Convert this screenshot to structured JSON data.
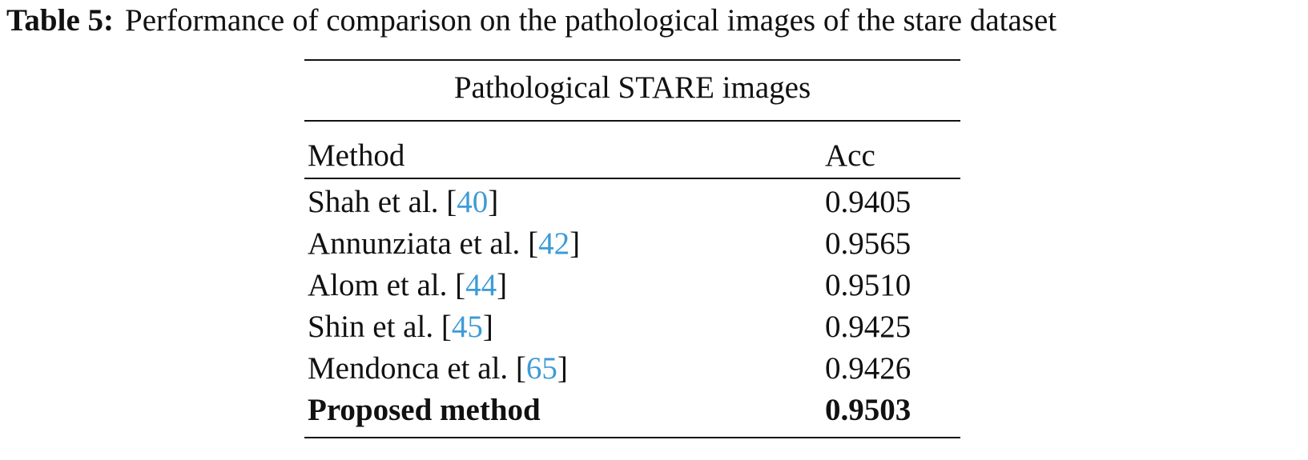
{
  "caption": {
    "label": "Table 5:",
    "text": "Performance of comparison on the pathological images of the stare dataset"
  },
  "table": {
    "group_header": "Pathological STARE images",
    "columns": [
      "Method",
      "Acc"
    ],
    "ref_brackets": [
      "[",
      "]"
    ],
    "rows": [
      {
        "method": "Shah et al.",
        "ref": "40",
        "acc": "0.9405"
      },
      {
        "method": "Annunziata et al.",
        "ref": "42",
        "acc": "0.9565"
      },
      {
        "method": "Alom et al.",
        "ref": "44",
        "acc": "0.9510"
      },
      {
        "method": "Shin et al.",
        "ref": "45",
        "acc": "0.9425"
      },
      {
        "method": "Mendonca et al.",
        "ref": "65",
        "acc": "0.9426"
      },
      {
        "method": "Proposed method",
        "ref": null,
        "acc": "0.9503",
        "bold": true
      }
    ]
  }
}
